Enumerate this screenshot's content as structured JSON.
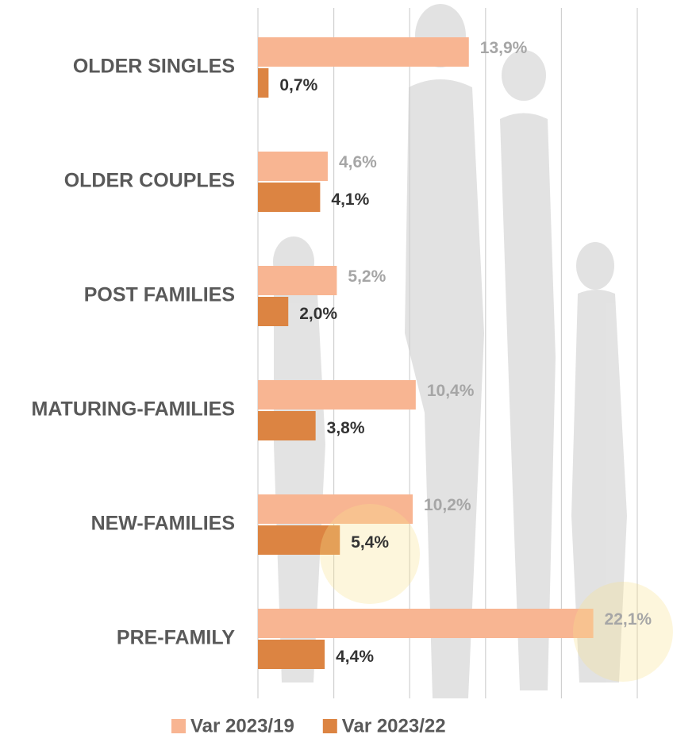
{
  "chart_data": {
    "type": "bar",
    "orientation": "horizontal",
    "categories": [
      "OLDER SINGLES",
      "OLDER COUPLES",
      "POST FAMILIES",
      "MATURING-FAMILIES",
      "NEW-FAMILIES",
      "PRE-FAMILY"
    ],
    "series": [
      {
        "name": "Var 2023/19",
        "color": "#f8b592",
        "label_color": "#a6a6a6",
        "values": [
          13.9,
          4.6,
          5.2,
          10.4,
          10.2,
          22.1
        ],
        "value_labels": [
          "13,9%",
          "4,6%",
          "5,2%",
          "10,4%",
          "10,2%",
          "22,1%"
        ]
      },
      {
        "name": "Var 2023/22",
        "color": "#dc8442",
        "label_color": "#333333",
        "values": [
          0.7,
          4.1,
          2.0,
          3.8,
          5.4,
          4.4
        ],
        "value_labels": [
          "0,7%",
          "4,1%",
          "2,0%",
          "3,8%",
          "5,4%",
          "4,4%"
        ]
      }
    ],
    "xlim": [
      0,
      25
    ],
    "xticks": [
      0,
      5,
      10,
      15,
      20,
      25
    ],
    "grid": true,
    "legend": "bottom"
  }
}
